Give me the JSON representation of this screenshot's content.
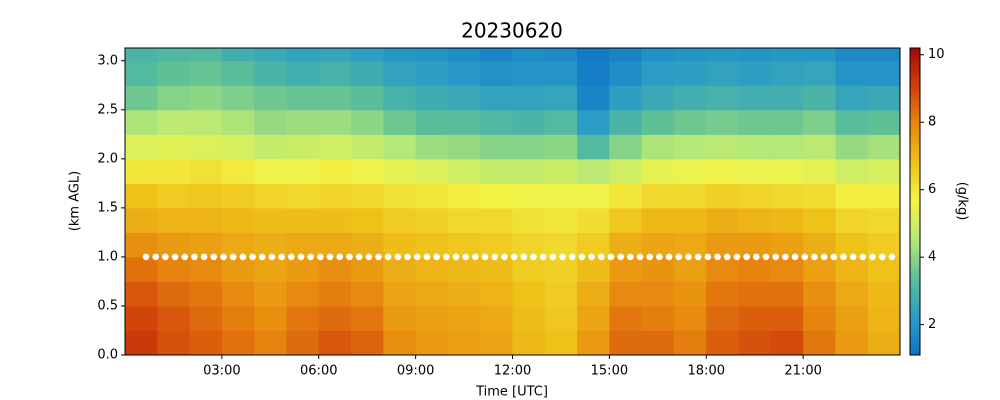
{
  "chart_data": {
    "type": "heatmap",
    "title": "20230620",
    "xlabel": "Time [UTC]",
    "ylabel": "(km AGL)",
    "colorbar_label": "(g/kg)",
    "xlim": [
      0,
      24
    ],
    "xticks": [
      {
        "value": 3,
        "label": "03:00"
      },
      {
        "value": 6,
        "label": "06:00"
      },
      {
        "value": 9,
        "label": "09:00"
      },
      {
        "value": 12,
        "label": "12:00"
      },
      {
        "value": 15,
        "label": "15:00"
      },
      {
        "value": 18,
        "label": "18:00"
      },
      {
        "value": 21,
        "label": "21:00"
      }
    ],
    "ylim": [
      0,
      3.13
    ],
    "yticks": [
      {
        "value": 0,
        "label": "0.0"
      },
      0.5,
      {
        "value": 1,
        "label": "1.0"
      },
      1.5,
      {
        "value": 2,
        "label": "2.0"
      },
      2.5,
      {
        "value": 3,
        "label": "3.0"
      }
    ],
    "clim": [
      1.1,
      10.2
    ],
    "cticks": [
      2,
      4,
      6,
      8,
      10
    ],
    "colormap": [
      "#0d73c6",
      "#2b9dc6",
      "#5cbf98",
      "#b6e877",
      "#f3f548",
      "#efc31a",
      "#e8890f",
      "#d0400a",
      "#a00808"
    ],
    "x_edges": [
      0,
      1,
      2,
      3,
      4,
      5,
      6,
      7,
      8,
      9,
      10,
      11,
      12,
      13,
      14,
      15,
      16,
      17,
      18,
      19,
      20,
      21,
      22,
      23,
      24
    ],
    "y_edges": [
      0,
      0.25,
      0.5,
      0.75,
      1,
      1.25,
      1.5,
      1.75,
      2,
      2.25,
      2.5,
      2.75,
      3,
      3.13
    ],
    "z": [
      [
        9.2,
        9.0,
        8.7,
        8.3,
        7.8,
        7.2,
        6.8,
        6.0,
        5.2,
        4.4,
        3.6,
        3.2,
        3.0
      ],
      [
        8.8,
        8.7,
        8.4,
        8.0,
        7.6,
        7.1,
        6.6,
        6.0,
        5.3,
        4.6,
        3.9,
        3.4,
        3.1
      ],
      [
        8.6,
        8.4,
        8.2,
        7.9,
        7.5,
        7.1,
        6.7,
        6.1,
        5.2,
        4.6,
        4.0,
        3.5,
        3.2
      ],
      [
        8.3,
        8.1,
        7.9,
        7.6,
        7.3,
        7.0,
        6.6,
        5.9,
        5.1,
        4.4,
        3.8,
        3.3,
        2.8
      ],
      [
        8.0,
        7.8,
        7.6,
        7.4,
        7.2,
        6.9,
        6.4,
        5.6,
        4.8,
        4.1,
        3.6,
        3.0,
        2.6
      ],
      [
        8.4,
        8.2,
        7.9,
        7.6,
        7.3,
        6.9,
        6.3,
        5.6,
        4.9,
        4.2,
        3.5,
        2.8,
        2.4
      ],
      [
        8.7,
        8.4,
        8.1,
        7.8,
        7.3,
        6.9,
        6.4,
        5.8,
        5.0,
        4.2,
        3.5,
        2.9,
        2.5
      ],
      [
        8.5,
        8.2,
        7.9,
        7.6,
        7.2,
        6.8,
        6.3,
        5.6,
        4.8,
        4.0,
        3.3,
        2.7,
        2.3
      ],
      [
        7.8,
        7.6,
        7.4,
        7.2,
        6.9,
        6.6,
        6.1,
        5.4,
        4.5,
        3.6,
        2.9,
        2.4,
        2.1
      ],
      [
        7.6,
        7.5,
        7.3,
        7.1,
        6.8,
        6.5,
        6.0,
        5.2,
        4.2,
        3.3,
        2.7,
        2.3,
        2.0
      ],
      [
        7.5,
        7.4,
        7.2,
        7.0,
        6.7,
        6.3,
        5.8,
        5.0,
        4.1,
        3.3,
        2.6,
        2.1,
        1.8
      ],
      [
        7.4,
        7.3,
        7.1,
        6.9,
        6.6,
        6.3,
        5.7,
        4.8,
        3.9,
        3.1,
        2.4,
        1.9,
        1.6
      ],
      [
        7.0,
        6.9,
        6.8,
        6.6,
        6.4,
        6.1,
        5.6,
        4.8,
        3.9,
        3.0,
        2.4,
        2.0,
        1.8
      ],
      [
        6.8,
        6.7,
        6.6,
        6.5,
        6.3,
        6.0,
        5.6,
        4.9,
        4.0,
        3.2,
        2.5,
        2.0,
        1.7
      ],
      [
        7.6,
        7.4,
        7.2,
        6.9,
        6.6,
        6.2,
        5.6,
        4.6,
        3.2,
        2.2,
        1.6,
        1.4,
        1.3
      ],
      [
        8.4,
        8.2,
        7.9,
        7.6,
        7.2,
        6.7,
        6.0,
        5.0,
        3.9,
        3.0,
        2.3,
        1.8,
        1.6
      ],
      [
        8.4,
        8.1,
        7.9,
        7.7,
        7.4,
        7.0,
        6.3,
        5.4,
        4.4,
        3.4,
        2.6,
        2.2,
        1.9
      ],
      [
        8.1,
        7.9,
        7.7,
        7.5,
        7.3,
        7.0,
        6.3,
        5.5,
        4.5,
        3.6,
        2.8,
        2.3,
        2.0
      ],
      [
        8.6,
        8.4,
        8.2,
        7.9,
        7.6,
        7.2,
        6.5,
        5.6,
        4.6,
        3.7,
        2.9,
        2.4,
        2.1
      ],
      [
        8.8,
        8.6,
        8.3,
        8.0,
        7.6,
        7.1,
        6.4,
        5.5,
        4.5,
        3.6,
        2.8,
        2.3,
        2.0
      ],
      [
        8.9,
        8.6,
        8.3,
        7.9,
        7.5,
        7.0,
        6.3,
        5.5,
        4.5,
        3.6,
        2.8,
        2.4,
        2.1
      ],
      [
        8.2,
        8.0,
        7.8,
        7.5,
        7.2,
        6.8,
        6.2,
        5.4,
        4.6,
        3.8,
        3.0,
        2.5,
        2.1
      ],
      [
        7.6,
        7.5,
        7.3,
        7.1,
        6.8,
        6.4,
        5.8,
        5.0,
        4.1,
        3.3,
        2.5,
        2.0,
        1.7
      ],
      [
        7.2,
        7.1,
        7.0,
        6.8,
        6.6,
        6.3,
        5.8,
        5.1,
        4.3,
        3.4,
        2.6,
        2.0,
        1.7
      ]
    ],
    "markers": {
      "color": "#ffffff",
      "y": 1.0,
      "x": [
        0.65,
        0.95,
        1.25,
        1.55,
        1.85,
        2.15,
        2.45,
        2.75,
        3.05,
        3.35,
        3.65,
        3.95,
        4.25,
        4.55,
        4.85,
        5.15,
        5.45,
        5.75,
        6.05,
        6.35,
        6.65,
        6.95,
        7.25,
        7.55,
        7.85,
        8.15,
        8.45,
        8.75,
        9.05,
        9.35,
        9.65,
        9.95,
        10.25,
        10.55,
        10.85,
        11.15,
        11.45,
        11.75,
        12.05,
        12.35,
        12.65,
        12.95,
        13.25,
        13.55,
        13.85,
        14.15,
        14.45,
        14.75,
        15.05,
        15.35,
        15.65,
        15.95,
        16.25,
        16.55,
        16.85,
        17.15,
        17.45,
        17.75,
        18.05,
        18.35,
        18.65,
        18.95,
        19.25,
        19.55,
        19.85,
        20.15,
        20.45,
        20.75,
        21.05,
        21.35,
        21.65,
        21.95,
        22.25,
        22.55,
        22.85,
        23.15,
        23.45,
        23.75
      ]
    }
  }
}
